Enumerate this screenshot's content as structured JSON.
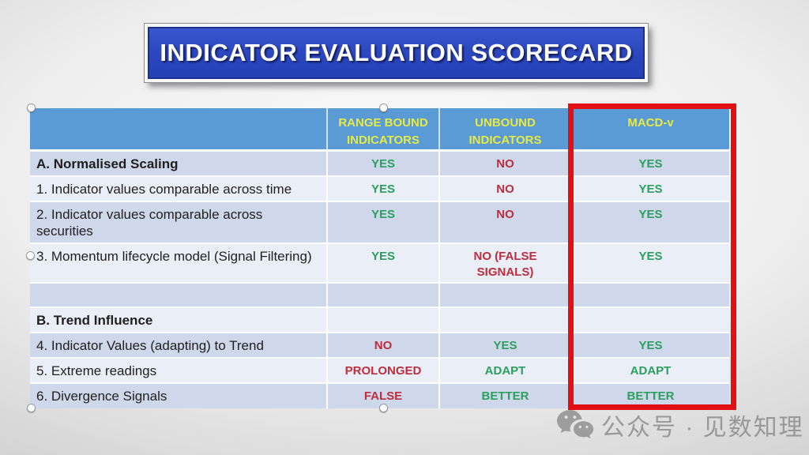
{
  "slide": {
    "title": "INDICATOR EVALUATION SCORECARD",
    "watermark": {
      "icon": "wechat-icon",
      "text": "公众号 · 见数知理"
    },
    "colors": {
      "banner_bg": "#2b46be",
      "header_bg": "#5b9bd5",
      "header_text": "#e7ea43",
      "band_dark": "#cfd8ea",
      "band_light": "#eaeef7",
      "positive_text": "#2ba05e",
      "negative_text": "#bf2c3c",
      "highlight_border": "#e20f13"
    },
    "table": {
      "columns": [
        "",
        "RANGE BOUND INDICATORS",
        "UNBOUND INDICATORS",
        "MACD-v"
      ],
      "highlighted_column": "MACD-v",
      "rows": [
        {
          "label": "A. Normalised Scaling",
          "bold": true,
          "values": [
            "YES",
            "NO",
            "YES"
          ],
          "tones": [
            "pos",
            "neg",
            "pos"
          ]
        },
        {
          "label": "1. Indicator values comparable across time",
          "bold": false,
          "values": [
            "YES",
            "NO",
            "YES"
          ],
          "tones": [
            "pos",
            "neg",
            "pos"
          ]
        },
        {
          "label": "2. Indicator values comparable across securities",
          "bold": false,
          "values": [
            "YES",
            "NO",
            "YES"
          ],
          "tones": [
            "pos",
            "neg",
            "pos"
          ]
        },
        {
          "label": "3. Momentum lifecycle model (Signal Filtering)",
          "bold": false,
          "values": [
            "YES",
            "NO (FALSE SIGNALS)",
            "YES"
          ],
          "tones": [
            "pos",
            "neg",
            "pos"
          ]
        },
        {
          "label": "",
          "bold": false,
          "values": [
            "",
            "",
            ""
          ],
          "tones": [
            "",
            "",
            ""
          ]
        },
        {
          "label": "B. Trend Influence",
          "bold": true,
          "values": [
            "",
            "",
            ""
          ],
          "tones": [
            "",
            "",
            ""
          ]
        },
        {
          "label": "4. Indicator Values (adapting) to Trend",
          "bold": false,
          "values": [
            "NO",
            "YES",
            "YES"
          ],
          "tones": [
            "neg",
            "pos",
            "pos"
          ]
        },
        {
          "label": "5. Extreme readings",
          "bold": false,
          "values": [
            "PROLONGED",
            "ADAPT",
            "ADAPT"
          ],
          "tones": [
            "neg",
            "pos",
            "pos"
          ]
        },
        {
          "label": "6. Divergence Signals",
          "bold": false,
          "values": [
            "FALSE",
            "BETTER",
            "BETTER"
          ],
          "tones": [
            "neg",
            "pos",
            "pos"
          ]
        }
      ]
    }
  }
}
